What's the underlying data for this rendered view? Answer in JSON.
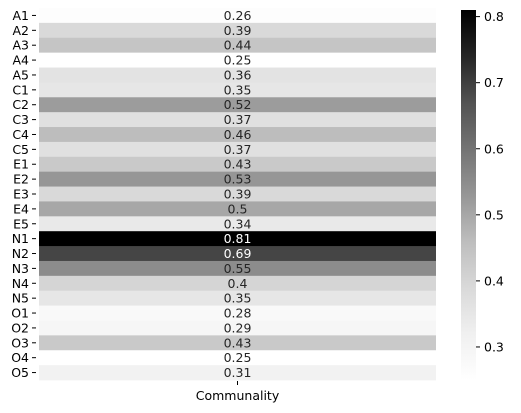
{
  "chart_data": {
    "type": "heatmap",
    "title": "",
    "xlabel": "",
    "ylabel": "",
    "x_categories": [
      "Communality"
    ],
    "y_categories": [
      "A1",
      "A2",
      "A3",
      "A4",
      "A5",
      "C1",
      "C2",
      "C3",
      "C4",
      "C5",
      "E1",
      "E2",
      "E3",
      "E4",
      "E5",
      "N1",
      "N2",
      "N3",
      "N4",
      "N5",
      "O1",
      "O2",
      "O3",
      "O4",
      "O5"
    ],
    "values": [
      0.26,
      0.39,
      0.44,
      0.25,
      0.36,
      0.35,
      0.52,
      0.37,
      0.46,
      0.37,
      0.43,
      0.53,
      0.39,
      0.5,
      0.34,
      0.81,
      0.69,
      0.55,
      0.4,
      0.35,
      0.28,
      0.29,
      0.43,
      0.25,
      0.31
    ],
    "value_labels": [
      "0.26",
      "0.39",
      "0.44",
      "0.25",
      "0.36",
      "0.35",
      "0.52",
      "0.37",
      "0.46",
      "0.37",
      "0.43",
      "0.53",
      "0.39",
      "0.5",
      "0.34",
      "0.81",
      "0.69",
      "0.55",
      "0.4",
      "0.35",
      "0.28",
      "0.29",
      "0.43",
      "0.25",
      "0.31"
    ],
    "annotated": true,
    "colormap": "Greys",
    "colorbar": {
      "range": [
        0.25,
        0.81
      ],
      "ticks": [
        0.3,
        0.4,
        0.5,
        0.6,
        0.7,
        0.8
      ],
      "tick_labels": [
        "0.3",
        "0.4",
        "0.5",
        "0.6",
        "0.7",
        "0.8"
      ],
      "placement": "right"
    },
    "grid": false
  }
}
